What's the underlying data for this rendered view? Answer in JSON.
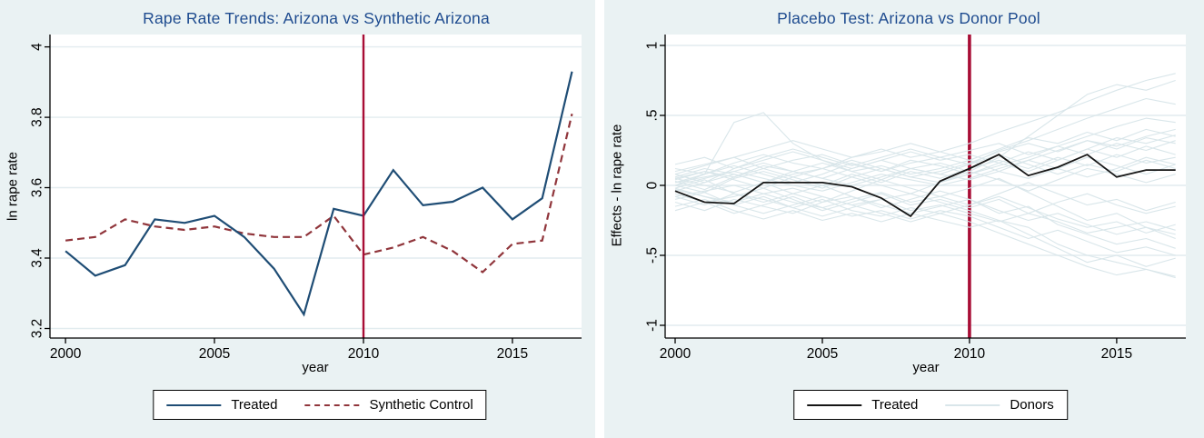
{
  "colors": {
    "background": "#eaf2f3",
    "plot_background": "#ffffff",
    "gridline": "#e2ecef",
    "axis": "#000000",
    "title": "#1e4b8f",
    "tick_label": "#000000",
    "policy_line": "#a80d35",
    "legend_border": "#000000",
    "legend_background": "#ffffff"
  },
  "chart_data": [
    {
      "type": "line",
      "title": "Rape Rate Trends: Arizona vs Synthetic Arizona",
      "xlabel": "year",
      "ylabel": "ln rape rate",
      "x": [
        2000,
        2001,
        2002,
        2003,
        2004,
        2005,
        2006,
        2007,
        2008,
        2009,
        2010,
        2011,
        2012,
        2013,
        2014,
        2015,
        2016,
        2017
      ],
      "xticks": [
        2000,
        2005,
        2010,
        2015
      ],
      "xtick_labels": [
        "2000",
        "2005",
        "2010",
        "2015"
      ],
      "yticks": [
        3.2,
        3.4,
        3.6,
        3.8,
        4
      ],
      "ytick_labels": [
        "3.2",
        "3.4",
        "3.6",
        "3.8",
        "4"
      ],
      "xlim": [
        1999.48,
        2017.32
      ],
      "ylim": [
        3.173,
        4.035
      ],
      "grid": true,
      "legend_position": "bottom-center",
      "vline": {
        "x": 2010,
        "color": "#a80d35",
        "width": 2.4
      },
      "series": [
        {
          "name": "Treated",
          "color": "#1f4d75",
          "style": "solid",
          "width": 2.2,
          "values": [
            3.42,
            3.35,
            3.38,
            3.51,
            3.5,
            3.52,
            3.46,
            3.37,
            3.24,
            3.54,
            3.52,
            3.65,
            3.55,
            3.56,
            3.6,
            3.51,
            3.57,
            3.93
          ]
        },
        {
          "name": "Synthetic Control",
          "color": "#90353b",
          "style": "dashed",
          "width": 2.2,
          "values": [
            3.45,
            3.46,
            3.51,
            3.49,
            3.48,
            3.49,
            3.47,
            3.46,
            3.46,
            3.52,
            3.41,
            3.43,
            3.46,
            3.42,
            3.36,
            3.44,
            3.45,
            3.81
          ]
        }
      ]
    },
    {
      "type": "line",
      "title": "Placebo Test: Arizona vs Donor Pool",
      "xlabel": "year",
      "ylabel": "Effects - ln rape rate",
      "x": [
        2000,
        2001,
        2002,
        2003,
        2004,
        2005,
        2006,
        2007,
        2008,
        2009,
        2010,
        2011,
        2012,
        2013,
        2014,
        2015,
        2016,
        2017
      ],
      "xticks": [
        2000,
        2005,
        2010,
        2015
      ],
      "xtick_labels": [
        "2000",
        "2005",
        "2010",
        "2015"
      ],
      "yticks": [
        -1,
        -0.5,
        0,
        0.5,
        1
      ],
      "ytick_labels": [
        "-1",
        "-.5",
        "0",
        ".5",
        "1"
      ],
      "xlim": [
        1999.66,
        2017.35
      ],
      "ylim": [
        -1.091,
        1.078
      ],
      "grid": true,
      "legend_position": "bottom-center",
      "vline": {
        "x": 2010,
        "color": "#a80d35",
        "width": 3.6
      },
      "series": [
        {
          "name": "Treated",
          "color": "#161616",
          "style": "solid",
          "width": 1.8,
          "values": [
            -0.04,
            -0.12,
            -0.13,
            0.02,
            0.02,
            0.02,
            -0.01,
            -0.09,
            -0.22,
            0.03,
            0.12,
            0.22,
            0.07,
            0.13,
            0.22,
            0.06,
            0.11,
            0.11
          ]
        }
      ],
      "donors": {
        "name": "Donors",
        "color": "#d9e6ea",
        "width": 1.1,
        "series": [
          [
            0.02,
            0.06,
            0.1,
            0.05,
            0.0,
            -0.04,
            0.02,
            0.08,
            0.04,
            0.0,
            0.05,
            0.12,
            0.18,
            0.25,
            0.32,
            0.28,
            0.35,
            0.4
          ],
          [
            -0.03,
            -0.08,
            -0.12,
            -0.06,
            -0.02,
            -0.08,
            -0.14,
            -0.1,
            -0.06,
            -0.12,
            -0.18,
            -0.25,
            -0.3,
            -0.42,
            -0.5,
            -0.55,
            -0.6,
            -0.65
          ],
          [
            0.0,
            0.08,
            0.45,
            0.52,
            0.3,
            0.18,
            0.1,
            0.14,
            0.08,
            0.12,
            0.18,
            0.1,
            0.05,
            0.12,
            0.2,
            0.14,
            0.08,
            0.15
          ],
          [
            0.05,
            0.0,
            -0.05,
            0.02,
            0.08,
            0.12,
            0.06,
            0.0,
            -0.06,
            0.02,
            0.1,
            0.2,
            0.35,
            0.5,
            0.65,
            0.72,
            0.68,
            0.75
          ],
          [
            -0.08,
            -0.04,
            0.0,
            -0.06,
            -0.12,
            -0.16,
            -0.1,
            -0.05,
            -0.12,
            -0.08,
            -0.02,
            0.05,
            -0.05,
            -0.15,
            -0.25,
            -0.2,
            -0.3,
            -0.35
          ],
          [
            0.1,
            0.15,
            0.2,
            0.12,
            0.18,
            0.22,
            0.15,
            0.1,
            0.16,
            0.2,
            0.25,
            0.3,
            0.22,
            0.28,
            0.35,
            0.42,
            0.48,
            0.45
          ],
          [
            -0.12,
            -0.18,
            -0.1,
            -0.15,
            -0.2,
            -0.12,
            -0.08,
            -0.14,
            -0.2,
            -0.15,
            -0.1,
            -0.18,
            -0.25,
            -0.2,
            -0.28,
            -0.35,
            -0.3,
            -0.38
          ],
          [
            0.04,
            0.1,
            0.06,
            0.14,
            0.1,
            0.05,
            0.12,
            0.18,
            0.12,
            0.08,
            0.15,
            0.22,
            0.15,
            0.08,
            0.15,
            0.1,
            0.18,
            0.12
          ],
          [
            -0.02,
            0.04,
            -0.06,
            -0.12,
            -0.06,
            0.0,
            -0.08,
            -0.16,
            -0.1,
            -0.04,
            -0.1,
            -0.2,
            -0.15,
            -0.28,
            -0.35,
            -0.42,
            -0.38,
            -0.45
          ],
          [
            0.08,
            0.02,
            0.12,
            0.2,
            0.26,
            0.2,
            0.14,
            0.2,
            0.26,
            0.2,
            0.15,
            0.25,
            0.32,
            0.4,
            0.48,
            0.55,
            0.62,
            0.58
          ],
          [
            -0.15,
            -0.1,
            -0.18,
            -0.24,
            -0.18,
            -0.25,
            -0.2,
            -0.26,
            -0.2,
            -0.25,
            -0.3,
            -0.25,
            -0.35,
            -0.45,
            -0.55,
            -0.5,
            -0.58,
            -0.52
          ],
          [
            0.0,
            -0.05,
            0.05,
            0.1,
            0.04,
            -0.02,
            0.06,
            0.12,
            0.06,
            0.02,
            0.08,
            0.16,
            0.24,
            0.18,
            0.26,
            0.34,
            0.3,
            0.36
          ],
          [
            0.06,
            0.12,
            0.08,
            0.02,
            0.1,
            0.16,
            0.1,
            0.04,
            0.12,
            0.16,
            0.1,
            0.04,
            -0.04,
            0.04,
            0.12,
            0.08,
            0.02,
            0.08
          ],
          [
            -0.06,
            -0.12,
            -0.08,
            -0.02,
            -0.1,
            -0.18,
            -0.12,
            -0.06,
            -0.14,
            -0.1,
            -0.16,
            -0.1,
            -0.2,
            -0.12,
            -0.06,
            -0.14,
            -0.2,
            -0.15
          ],
          [
            0.12,
            0.08,
            0.16,
            0.22,
            0.16,
            0.12,
            0.2,
            0.26,
            0.2,
            0.24,
            0.3,
            0.38,
            0.45,
            0.52,
            0.6,
            0.68,
            0.75,
            0.8
          ],
          [
            -0.1,
            -0.05,
            -0.14,
            -0.08,
            -0.16,
            -0.1,
            -0.18,
            -0.22,
            -0.16,
            -0.2,
            -0.14,
            -0.08,
            -0.16,
            -0.24,
            -0.3,
            -0.26,
            -0.34,
            -0.28
          ],
          [
            0.02,
            0.08,
            0.14,
            0.08,
            0.02,
            0.08,
            0.16,
            0.1,
            0.18,
            0.14,
            0.08,
            0.14,
            0.2,
            0.28,
            0.22,
            0.3,
            0.25,
            0.32
          ],
          [
            -0.04,
            0.02,
            0.08,
            0.02,
            -0.06,
            -0.12,
            -0.04,
            0.04,
            -0.02,
            -0.08,
            -0.14,
            -0.06,
            0.02,
            -0.06,
            -0.14,
            -0.1,
            -0.18,
            -0.12
          ],
          [
            0.15,
            0.2,
            0.12,
            0.18,
            0.24,
            0.18,
            0.12,
            0.18,
            0.24,
            0.18,
            0.22,
            0.16,
            0.1,
            0.18,
            0.26,
            0.2,
            0.28,
            0.22
          ],
          [
            -0.18,
            -0.12,
            -0.2,
            -0.14,
            -0.08,
            -0.16,
            -0.22,
            -0.18,
            -0.24,
            -0.18,
            -0.22,
            -0.3,
            -0.38,
            -0.32,
            -0.4,
            -0.48,
            -0.44,
            -0.5
          ],
          [
            0.0,
            0.05,
            0.1,
            0.16,
            0.1,
            0.05,
            0.0,
            0.06,
            0.12,
            0.08,
            0.04,
            0.1,
            0.18,
            0.12,
            0.06,
            0.12,
            0.2,
            0.15
          ],
          [
            0.05,
            0.1,
            0.04,
            -0.02,
            0.06,
            0.12,
            0.18,
            0.12,
            0.06,
            0.1,
            0.16,
            0.24,
            0.3,
            0.24,
            0.32,
            0.26,
            0.34,
            0.3
          ],
          [
            -0.08,
            -0.14,
            -0.06,
            -0.1,
            -0.16,
            -0.22,
            -0.16,
            -0.1,
            -0.18,
            -0.14,
            -0.2,
            -0.26,
            -0.2,
            -0.26,
            -0.34,
            -0.3,
            -0.26,
            -0.32
          ],
          [
            0.08,
            0.14,
            0.2,
            0.26,
            0.32,
            0.26,
            0.2,
            0.24,
            0.3,
            0.24,
            0.18,
            0.26,
            0.34,
            0.3,
            0.38,
            0.32,
            0.4,
            0.35
          ],
          [
            -0.02,
            -0.08,
            -0.14,
            -0.2,
            -0.14,
            -0.08,
            -0.14,
            -0.2,
            -0.26,
            -0.2,
            -0.26,
            -0.34,
            -0.42,
            -0.5,
            -0.58,
            -0.64,
            -0.6,
            -0.66
          ],
          [
            0.03,
            -0.03,
            0.06,
            0.12,
            0.06,
            0.0,
            0.08,
            0.02,
            0.1,
            0.05,
            0.12,
            0.18,
            0.12,
            0.2,
            0.14,
            0.22,
            0.16,
            0.2
          ]
        ]
      }
    }
  ]
}
